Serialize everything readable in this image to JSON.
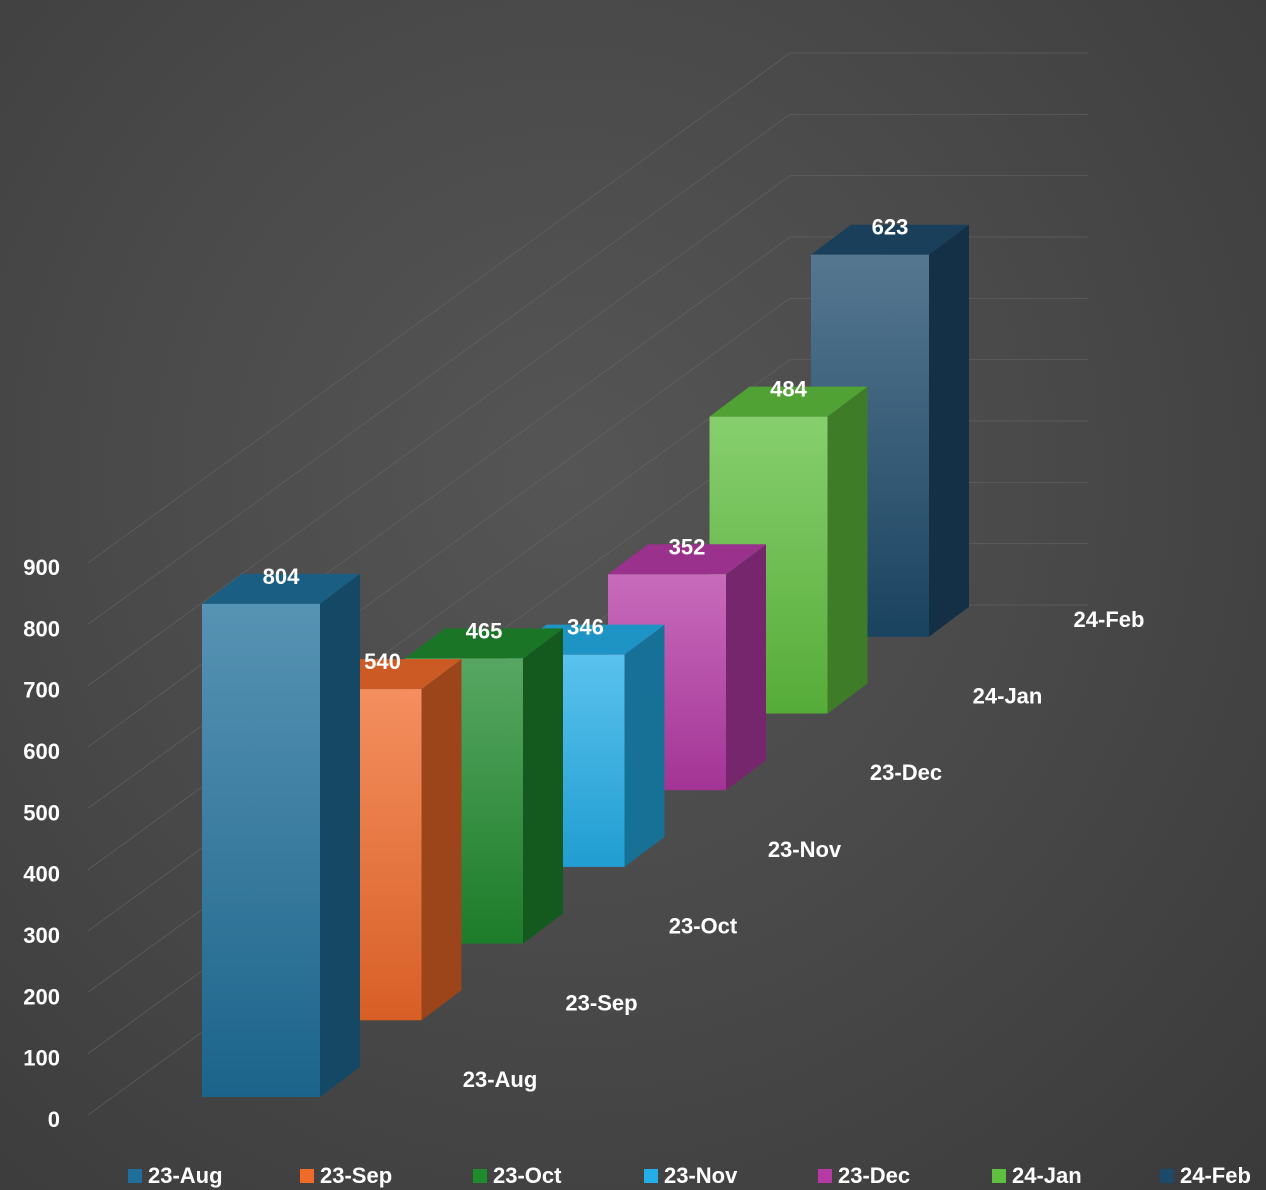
{
  "chart_data": {
    "type": "bar",
    "variant": "3d-column",
    "categories": [
      "23-Aug",
      "23-Sep",
      "23-Oct",
      "23-Nov",
      "23-Dec",
      "24-Jan",
      "24-Feb"
    ],
    "series": [
      {
        "name": "23-Aug",
        "category": "23-Aug",
        "value": 804,
        "color": "#1f6f9a"
      },
      {
        "name": "23-Sep",
        "category": "23-Sep",
        "value": 540,
        "color": "#f06a2a"
      },
      {
        "name": "23-Oct",
        "category": "23-Oct",
        "value": 465,
        "color": "#1f8a2e"
      },
      {
        "name": "23-Nov",
        "category": "23-Nov",
        "value": 346,
        "color": "#23aee8"
      },
      {
        "name": "23-Dec",
        "category": "23-Dec",
        "value": 352,
        "color": "#b53aa6"
      },
      {
        "name": "24-Jan",
        "category": "24-Jan",
        "value": 484,
        "color": "#5fbf3e"
      },
      {
        "name": "24-Feb",
        "category": "24-Feb",
        "value": 623,
        "color": "#1d4a6b"
      }
    ],
    "y_ticks": [
      0,
      100,
      200,
      300,
      400,
      500,
      600,
      700,
      800,
      900
    ],
    "ylim": [
      0,
      900
    ],
    "title": "",
    "xlabel": "",
    "ylabel": "",
    "grid": true,
    "legend_position": "bottom"
  }
}
